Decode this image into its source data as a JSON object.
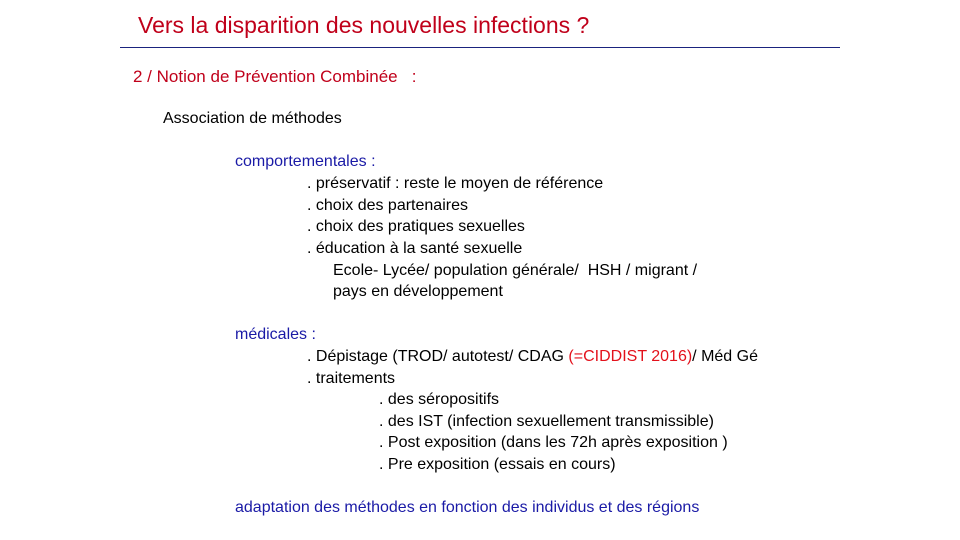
{
  "title": "Vers la disparition des nouvelles infections ?",
  "section_heading": "2 / Notion de Prévention Combinée   :",
  "intro": "Association de méthodes",
  "behavioural": {
    "heading": "comportementales :",
    "items": [
      ". préservatif : reste le moyen de référence",
      ". choix des partenaires",
      ". choix des pratiques sexuelles",
      ". éducation à la santé sexuelle"
    ],
    "subline_1": "Ecole- Lycée/ population générale/  HSH / migrant /",
    "subline_2": "pays en développement"
  },
  "medical": {
    "heading": "médicales :",
    "screening_prefix": ". Dépistage (TROD/ autotest/ CDAG ",
    "screening_highlight": "(=CIDDIST 2016)",
    "screening_suffix": "/ Méd Gé",
    "treatments_label": ". traitements",
    "treatments": [
      ". des séropositifs",
      ". des IST (infection sexuellement transmissible)",
      ". Post exposition (dans les 72h après exposition )",
      ". Pre exposition (essais en cours)"
    ]
  },
  "conclusion": "adaptation des méthodes en fonction des individus et des régions",
  "colors": {
    "title": "#c0001a",
    "heading_blue": "#1a1aa6",
    "highlight_red": "#e3111b",
    "rule": "#1a237e"
  }
}
